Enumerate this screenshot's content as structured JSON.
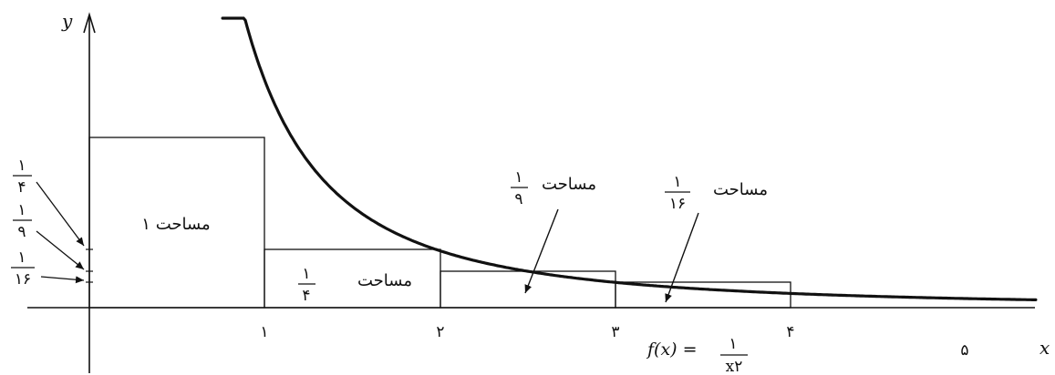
{
  "axes": {
    "x_label": "x",
    "y_label": "y",
    "x_ticks": [
      "۱",
      "۲",
      "۳",
      "۴",
      "۵"
    ]
  },
  "y_tick_labels": [
    {
      "num": "۱",
      "den": "۴"
    },
    {
      "num": "۱",
      "den": "۹"
    },
    {
      "num": "۱",
      "den": "۱۶"
    }
  ],
  "area_labels": {
    "rect1": "مساحت ۱",
    "rect2_word": "مساحت",
    "rect2_frac": {
      "num": "۱",
      "den": "۴"
    },
    "rect3_word": "مساحت",
    "rect3_frac": {
      "num": "۱",
      "den": "۹"
    },
    "rect4_word": "مساحت",
    "rect4_frac": {
      "num": "۱",
      "den": "۱۶"
    }
  },
  "formula": {
    "lhs": "f(x) =",
    "num": "۱",
    "den": "x۲"
  },
  "curve": {
    "function": "1/x^2"
  },
  "colors": {
    "ink": "#111111",
    "background": "#ffffff"
  }
}
